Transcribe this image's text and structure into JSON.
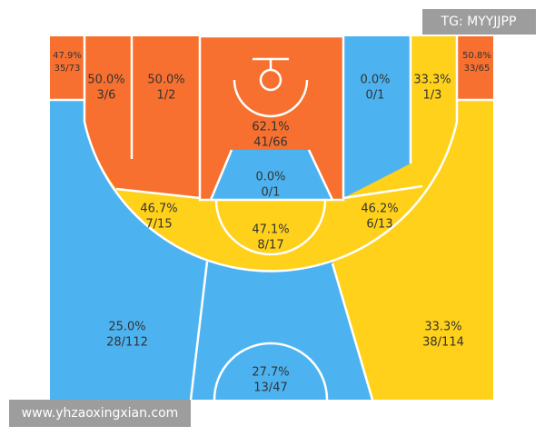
{
  "zones": [
    {
      "pct": "47.9%",
      "shots": "35/73"
    },
    {
      "pct": "50.0%",
      "shots": "3/6"
    },
    {
      "pct": "50.0%",
      "shots": "1/2"
    },
    {
      "pct": "62.1%",
      "shots": "41/66"
    },
    {
      "pct": "0.0%",
      "shots": "0/1"
    },
    {
      "pct": "33.3%",
      "shots": "1/3"
    },
    {
      "pct": "50.8%",
      "shots": "33/65"
    },
    {
      "pct": "0.0%",
      "shots": "0/1"
    },
    {
      "pct": "46.7%",
      "shots": "7/15"
    },
    {
      "pct": "47.1%",
      "shots": "8/17"
    },
    {
      "pct": "46.2%",
      "shots": "6/13"
    },
    {
      "pct": "25.0%",
      "shots": "28/112"
    },
    {
      "pct": "27.7%",
      "shots": "13/47"
    },
    {
      "pct": "33.3%",
      "shots": "38/114"
    }
  ],
  "watermarks": {
    "top": "TG: MYYJJPP",
    "bottom": "www.yhzaoxingxian.com"
  }
}
